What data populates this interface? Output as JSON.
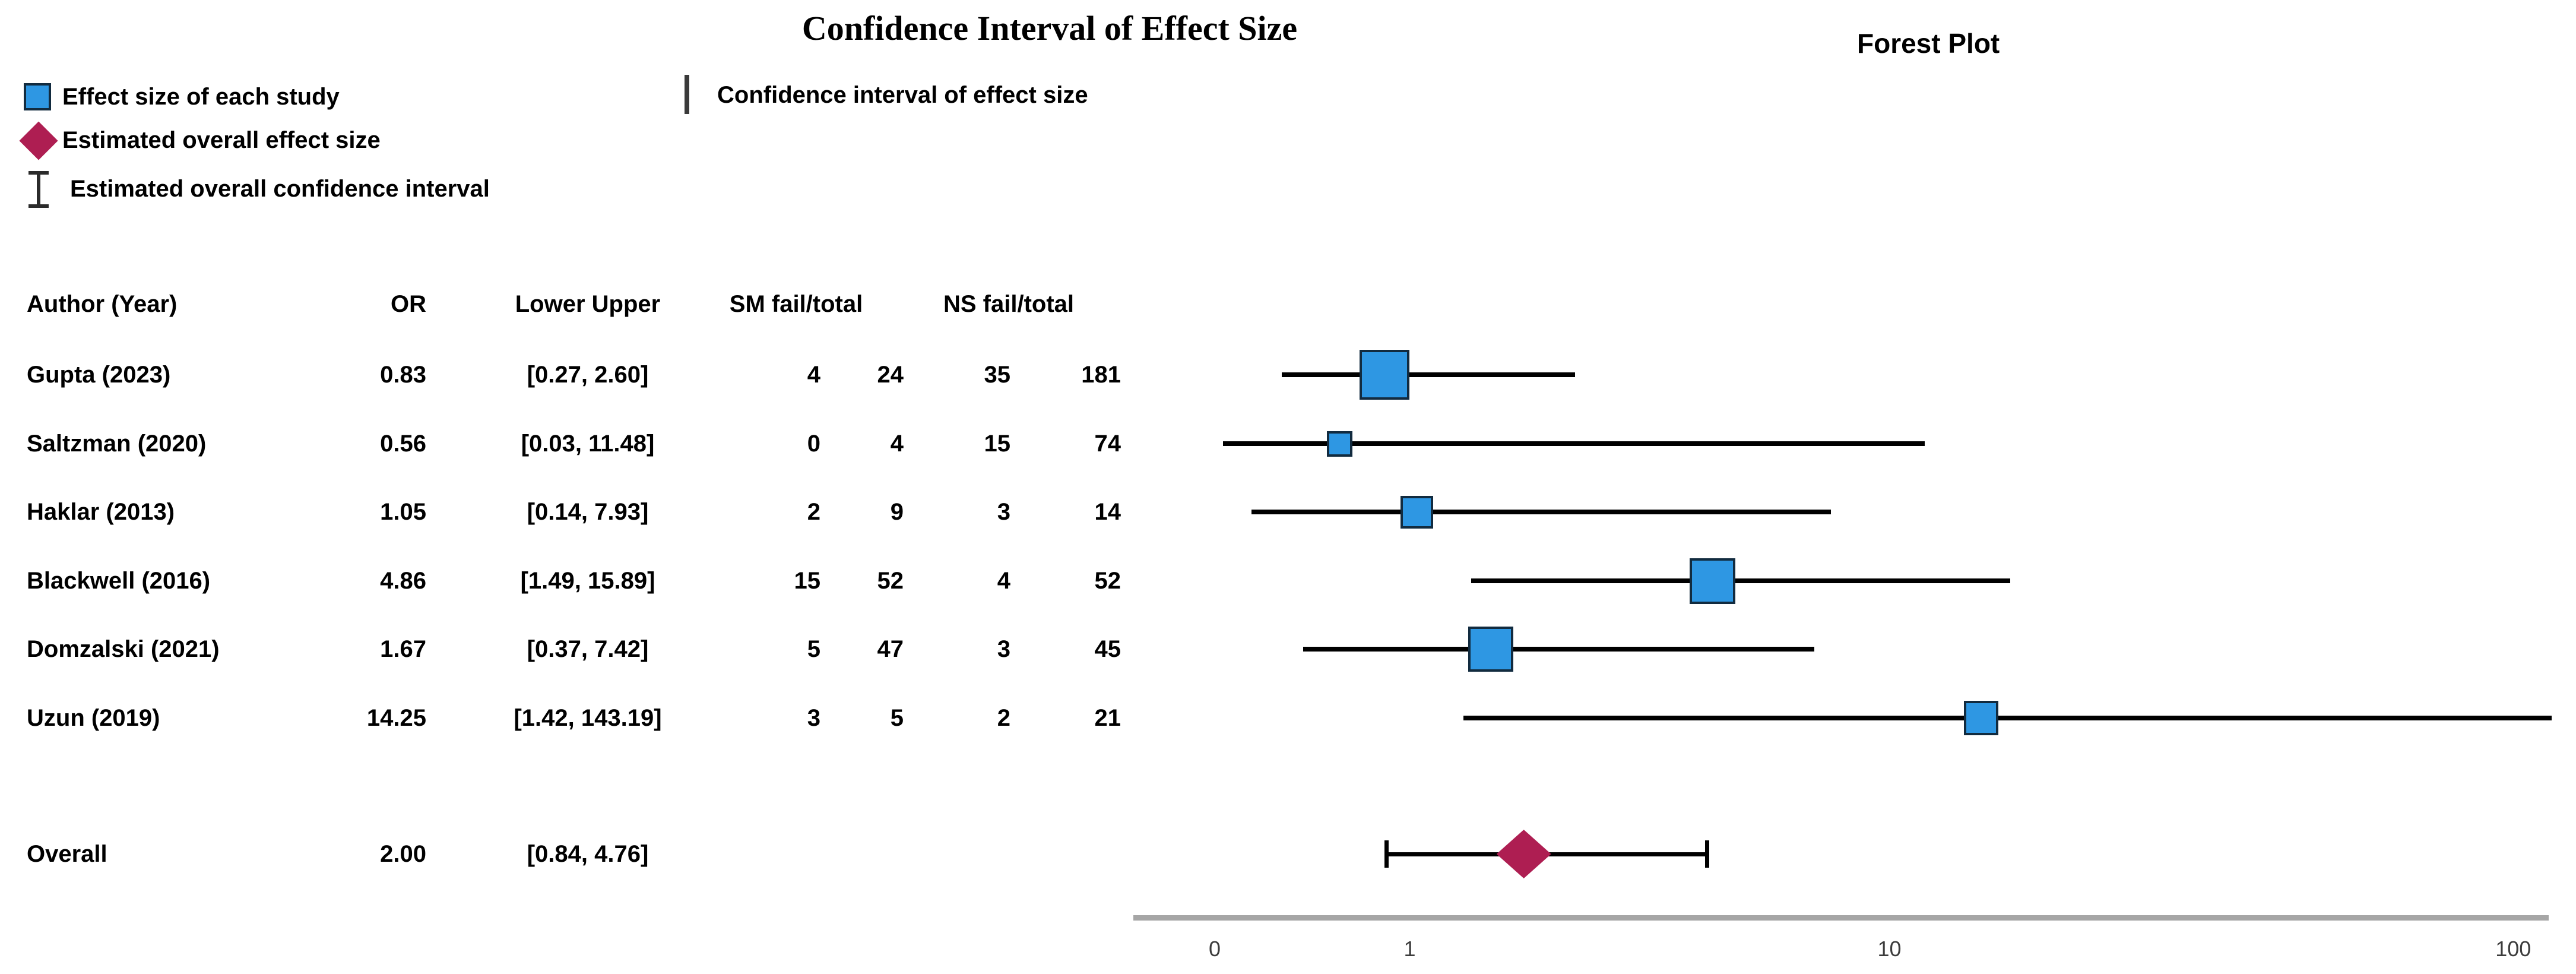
{
  "title": "Confidence Interval of Effect Size",
  "plot_title": "Forest Plot",
  "legend": {
    "items": [
      {
        "icon": "study-square-icon",
        "label": "Effect size of each study"
      },
      {
        "icon": "overall-diamond-icon",
        "label": "Estimated overall effect size"
      },
      {
        "icon": "overall-errorbar-icon",
        "label": "Estimated overall confidence interval"
      }
    ],
    "divider_label": "Confidence interval of effect size"
  },
  "table": {
    "headers": [
      "Author (Year)",
      "OR",
      "Lower Upper",
      "SM fail/total",
      "NS fail/total"
    ]
  },
  "chart_data": {
    "type": "forest",
    "effect_measure": "OR",
    "title": "Confidence Interval of Effect Size",
    "x_axis": {
      "scale": "log10(value+1)",
      "ticks": [
        "0",
        "1",
        "10",
        "100"
      ],
      "tick_values": [
        0,
        1,
        10,
        100
      ],
      "clip_upper_value": 143.19
    },
    "studies": [
      {
        "author": "Gupta (2023)",
        "or": 0.83,
        "or_text": "0.83",
        "ci_lower": 0.27,
        "ci_upper": 2.6,
        "ci_text": "[0.27, 2.60]",
        "sm_fail": "4",
        "sm_total": "24",
        "ns_fail": "35",
        "ns_total": "181",
        "marker_size": 84
      },
      {
        "author": "Saltzman (2020)",
        "or": 0.56,
        "or_text": "0.56",
        "ci_lower": 0.03,
        "ci_upper": 11.48,
        "ci_text": "[0.03, 11.48]",
        "sm_fail": "0",
        "sm_total": "4",
        "ns_fail": "15",
        "ns_total": "74",
        "marker_size": 43
      },
      {
        "author": "Haklar (2013)",
        "or": 1.05,
        "or_text": "1.05",
        "ci_lower": 0.14,
        "ci_upper": 7.93,
        "ci_text": "[0.14, 7.93]",
        "sm_fail": "2",
        "sm_total": "9",
        "ns_fail": "3",
        "ns_total": "14",
        "marker_size": 55
      },
      {
        "author": "Blackwell (2016)",
        "or": 4.86,
        "or_text": "4.86",
        "ci_lower": 1.49,
        "ci_upper": 15.89,
        "ci_text": "[1.49, 15.89]",
        "sm_fail": "15",
        "sm_total": "52",
        "ns_fail": "4",
        "ns_total": "52",
        "marker_size": 77
      },
      {
        "author": "Domzalski (2021)",
        "or": 1.67,
        "or_text": "1.67",
        "ci_lower": 0.37,
        "ci_upper": 7.42,
        "ci_text": "[0.37, 7.42]",
        "sm_fail": "5",
        "sm_total": "47",
        "ns_fail": "3",
        "ns_total": "45",
        "marker_size": 76
      },
      {
        "author": "Uzun (2019)",
        "or": 14.25,
        "or_text": "14.25",
        "ci_lower": 1.42,
        "ci_upper": 143.19,
        "ci_text": "[1.42, 143.19]",
        "sm_fail": "3",
        "sm_total": "5",
        "ns_fail": "2",
        "ns_total": "21",
        "marker_size": 58
      }
    ],
    "overall": {
      "label": "Overall",
      "or": 2.0,
      "or_text": "2.00",
      "ci_lower": 0.84,
      "ci_upper": 4.76,
      "ci_text": "[0.84, 4.76]"
    }
  },
  "colors": {
    "study_marker": "#2E97E3",
    "marker_border": "#122B3F",
    "overall_diamond": "#AE1E52",
    "ci_line": "#000000",
    "axis_line": "#A6A6A6",
    "axis_label": "#3C3C3C",
    "text": "#000000"
  }
}
